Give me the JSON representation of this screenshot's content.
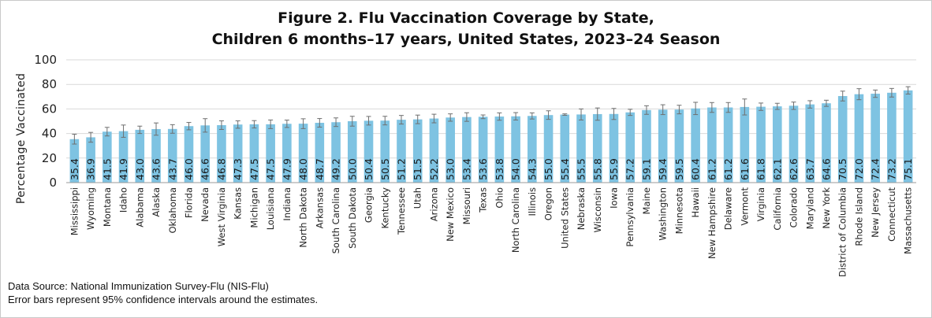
{
  "chart_data": {
    "type": "bar",
    "title_lines": [
      "Figure 2. Flu Vaccination Coverage by State,",
      "Children 6 months–17 years, United States, 2023–24 Season"
    ],
    "ylabel": "Percentage Vaccinated",
    "xlabel": "",
    "ylim": [
      0,
      100
    ],
    "yticks": [
      0,
      20,
      40,
      60,
      80,
      100
    ],
    "grid": true,
    "bar_color": "#7ec3e2",
    "categories": [
      "Mississippi",
      "Wyoming",
      "Montana",
      "Idaho",
      "Alabama",
      "Alaska",
      "Oklahoma",
      "Florida",
      "Nevada",
      "West Virginia",
      "Kansas",
      "Michigan",
      "Louisiana",
      "Indiana",
      "North Dakota",
      "Arkansas",
      "South Carolina",
      "South Dakota",
      "Georgia",
      "Kentucky",
      "Tennessee",
      "Utah",
      "Arizona",
      "New Mexico",
      "Missouri",
      "Texas",
      "Ohio",
      "North Carolina",
      "Illinois",
      "Oregon",
      "United States",
      "Nebraska",
      "Wisconsin",
      "Iowa",
      "Pennsylvania",
      "Maine",
      "Washington",
      "Minnesota",
      "Hawaii",
      "New Hampshire",
      "Delaware",
      "Vermont",
      "Virginia",
      "California",
      "Colorado",
      "Maryland",
      "New York",
      "District of Columbia",
      "Rhode Island",
      "New Jersey",
      "Connecticut",
      "Massachusetts"
    ],
    "values": [
      35.4,
      36.9,
      41.5,
      41.9,
      43.0,
      43.6,
      43.7,
      46.0,
      46.6,
      46.8,
      47.3,
      47.5,
      47.5,
      47.9,
      48.0,
      48.7,
      49.2,
      50.0,
      50.4,
      50.5,
      51.2,
      51.5,
      52.2,
      53.0,
      53.4,
      53.6,
      53.8,
      54.0,
      54.3,
      55.0,
      55.4,
      55.5,
      55.8,
      55.9,
      57.2,
      59.1,
      59.4,
      59.5,
      60.4,
      61.2,
      61.2,
      61.6,
      61.8,
      62.1,
      62.6,
      63.7,
      64.6,
      70.5,
      72.0,
      72.4,
      73.2,
      75.1
    ],
    "value_labels": [
      "35.4",
      "36.9",
      "41.5",
      "41.9",
      "43.0",
      "43.6",
      "43.7",
      "46.0",
      "46.6",
      "46.8",
      "47.3",
      "47.5",
      "47.5",
      "47.9",
      "48.0",
      "48.7",
      "49.2",
      "50.0",
      "50.4",
      "50.5",
      "51.2",
      "51.5",
      "52.2",
      "53.0",
      "53.4",
      "53.6",
      "53.8",
      "54.0",
      "54.3",
      "55.0",
      "55.4",
      "55.5",
      "55.8",
      "55.9",
      "57.2",
      "59.1",
      "59.4",
      "59.5",
      "60.4",
      "61.2",
      "61.2",
      "61.6",
      "61.8",
      "62.1",
      "62.6",
      "63.7",
      "64.6",
      "70.5",
      "72.0",
      "72.4",
      "73.2",
      "75.1"
    ],
    "ci_half": [
      4.0,
      4.0,
      3.5,
      5.0,
      3.0,
      5.0,
      3.5,
      3.0,
      5.5,
      3.5,
      3.0,
      3.0,
      3.5,
      3.0,
      4.0,
      3.5,
      3.5,
      4.0,
      3.5,
      3.5,
      3.5,
      3.5,
      3.5,
      3.0,
      3.5,
      1.5,
      3.0,
      3.0,
      2.5,
      3.5,
      0.6,
      4.5,
      5.0,
      4.5,
      2.5,
      3.5,
      4.0,
      3.5,
      5.0,
      4.0,
      4.0,
      6.5,
      3.0,
      2.5,
      3.0,
      3.0,
      2.5,
      4.0,
      4.5,
      3.0,
      3.5,
      3.0
    ]
  },
  "footnotes": {
    "source": "Data Source: National Immunization Survey-Flu (NIS-Flu)",
    "error_bars": "Error bars represent 95% confidence intervals around the estimates."
  }
}
